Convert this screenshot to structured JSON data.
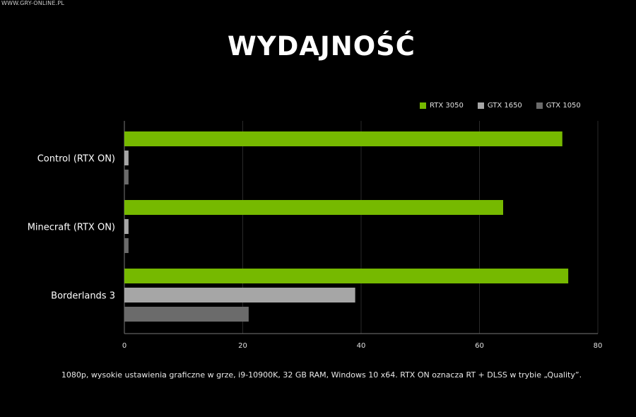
{
  "watermark": "WWW.GRY-ONLINE.PL",
  "chart_data": {
    "type": "bar",
    "orientation": "horizontal",
    "title": "WYDAJNOŚĆ",
    "categories": [
      "Control (RTX ON)",
      "Minecraft (RTX ON)",
      "Borderlands 3"
    ],
    "series": [
      {
        "name": "RTX 3050",
        "color": "#76b900",
        "values": [
          74,
          64,
          75
        ]
      },
      {
        "name": "GTX 1650",
        "color": "#a6a6a6",
        "values": [
          0.7,
          0.7,
          39
        ]
      },
      {
        "name": "GTX 1050",
        "color": "#6b6b6b",
        "values": [
          0.7,
          0.7,
          21
        ]
      }
    ],
    "xlim": [
      0,
      80
    ],
    "xticks": [
      0,
      20,
      40,
      60,
      80
    ],
    "grid": true,
    "legend": "top-right",
    "xlabel": "",
    "ylabel": ""
  },
  "footnote": "1080p, wysokie ustawienia graficzne w grze, i9-10900K, 32 GB RAM, Windows 10 x64. RTX ON oznacza RT + DLSS w trybie „Quality”."
}
